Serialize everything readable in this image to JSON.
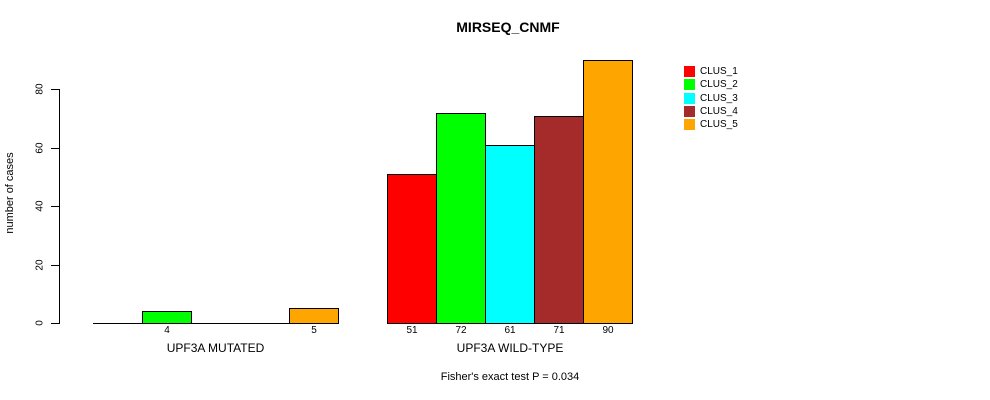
{
  "title": "MIRSEQ_CNMF",
  "footer": "Fisher's exact test P = 0.034",
  "y_axis": {
    "label": "number of cases"
  },
  "legend": {
    "items": [
      {
        "label": "CLUS_1",
        "color": "#FF0000"
      },
      {
        "label": "CLUS_2",
        "color": "#00FF00"
      },
      {
        "label": "CLUS_3",
        "color": "#00FFFF"
      },
      {
        "label": "CLUS_4",
        "color": "#A52A2A"
      },
      {
        "label": "CLUS_5",
        "color": "#FFA500"
      }
    ]
  },
  "chart_data": {
    "type": "bar",
    "title": "MIRSEQ_CNMF",
    "ylabel": "number of cases",
    "ylim": [
      0,
      90
    ],
    "yticks": [
      0,
      20,
      40,
      60,
      80
    ],
    "grid": false,
    "legend_position": "top-right-outside",
    "series_names": [
      "CLUS_1",
      "CLUS_2",
      "CLUS_3",
      "CLUS_4",
      "CLUS_5"
    ],
    "colors": [
      "#FF0000",
      "#00FF00",
      "#00FFFF",
      "#A52A2A",
      "#FFA500"
    ],
    "groups": [
      {
        "label": "UPF3A MUTATED",
        "values": [
          0,
          4,
          0,
          0,
          5
        ],
        "bar_labels": [
          "",
          "4",
          "",
          "",
          "5"
        ]
      },
      {
        "label": "UPF3A WILD-TYPE",
        "values": [
          51,
          72,
          61,
          71,
          90
        ],
        "bar_labels": [
          "51",
          "72",
          "61",
          "71",
          "90"
        ]
      }
    ],
    "annotation": "Fisher's exact test P = 0.034"
  }
}
